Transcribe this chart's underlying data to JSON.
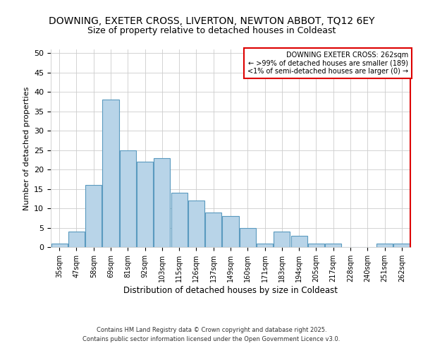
{
  "title_line1": "DOWNING, EXETER CROSS, LIVERTON, NEWTON ABBOT, TQ12 6EY",
  "title_line2": "Size of property relative to detached houses in Coldeast",
  "xlabel": "Distribution of detached houses by size in Coldeast",
  "ylabel": "Number of detached properties",
  "bar_labels": [
    "35sqm",
    "47sqm",
    "58sqm",
    "69sqm",
    "81sqm",
    "92sqm",
    "103sqm",
    "115sqm",
    "126sqm",
    "137sqm",
    "149sqm",
    "160sqm",
    "171sqm",
    "183sqm",
    "194sqm",
    "205sqm",
    "217sqm",
    "228sqm",
    "240sqm",
    "251sqm",
    "262sqm"
  ],
  "bar_values": [
    1,
    4,
    16,
    38,
    25,
    22,
    23,
    14,
    12,
    9,
    8,
    5,
    1,
    4,
    3,
    1,
    1,
    0,
    0,
    1,
    1
  ],
  "bar_color": "#b8d4e8",
  "bar_edge_color": "#5a9abf",
  "ylim": [
    0,
    51
  ],
  "yticks": [
    0,
    5,
    10,
    15,
    20,
    25,
    30,
    35,
    40,
    45,
    50
  ],
  "annotation_line1": "DOWNING EXETER CROSS: 262sqm",
  "annotation_line2": "← >99% of detached houses are smaller (189)",
  "annotation_line3": "<1% of semi-detached houses are larger (0) →",
  "footer_line1": "Contains HM Land Registry data © Crown copyright and database right 2025.",
  "footer_line2": "Contains public sector information licensed under the Open Government Licence v3.0.",
  "background_color": "#ffffff",
  "grid_color": "#cccccc",
  "red_color": "#dd0000"
}
